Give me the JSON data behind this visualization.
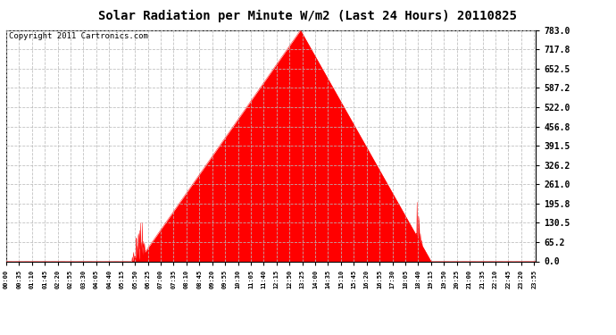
{
  "title": "Solar Radiation per Minute W/m2 (Last 24 Hours) 20110825",
  "copyright": "Copyright 2011 Cartronics.com",
  "yticks": [
    0.0,
    65.2,
    130.5,
    195.8,
    261.0,
    326.2,
    391.5,
    456.8,
    522.0,
    587.2,
    652.5,
    717.8,
    783.0
  ],
  "ymax": 783.0,
  "ymin": 0.0,
  "fill_color": "#FF0000",
  "line_color": "#FF0000",
  "bg_color": "#FFFFFF",
  "grid_color": "#BBBBBB",
  "dashed_baseline_color": "#FF0000",
  "title_fontsize": 10,
  "copyright_fontsize": 6.5,
  "sunrise_min": 360,
  "sunset_min": 1155,
  "peak_min": 800,
  "peak_val": 783.0,
  "tick_step_min": 35
}
